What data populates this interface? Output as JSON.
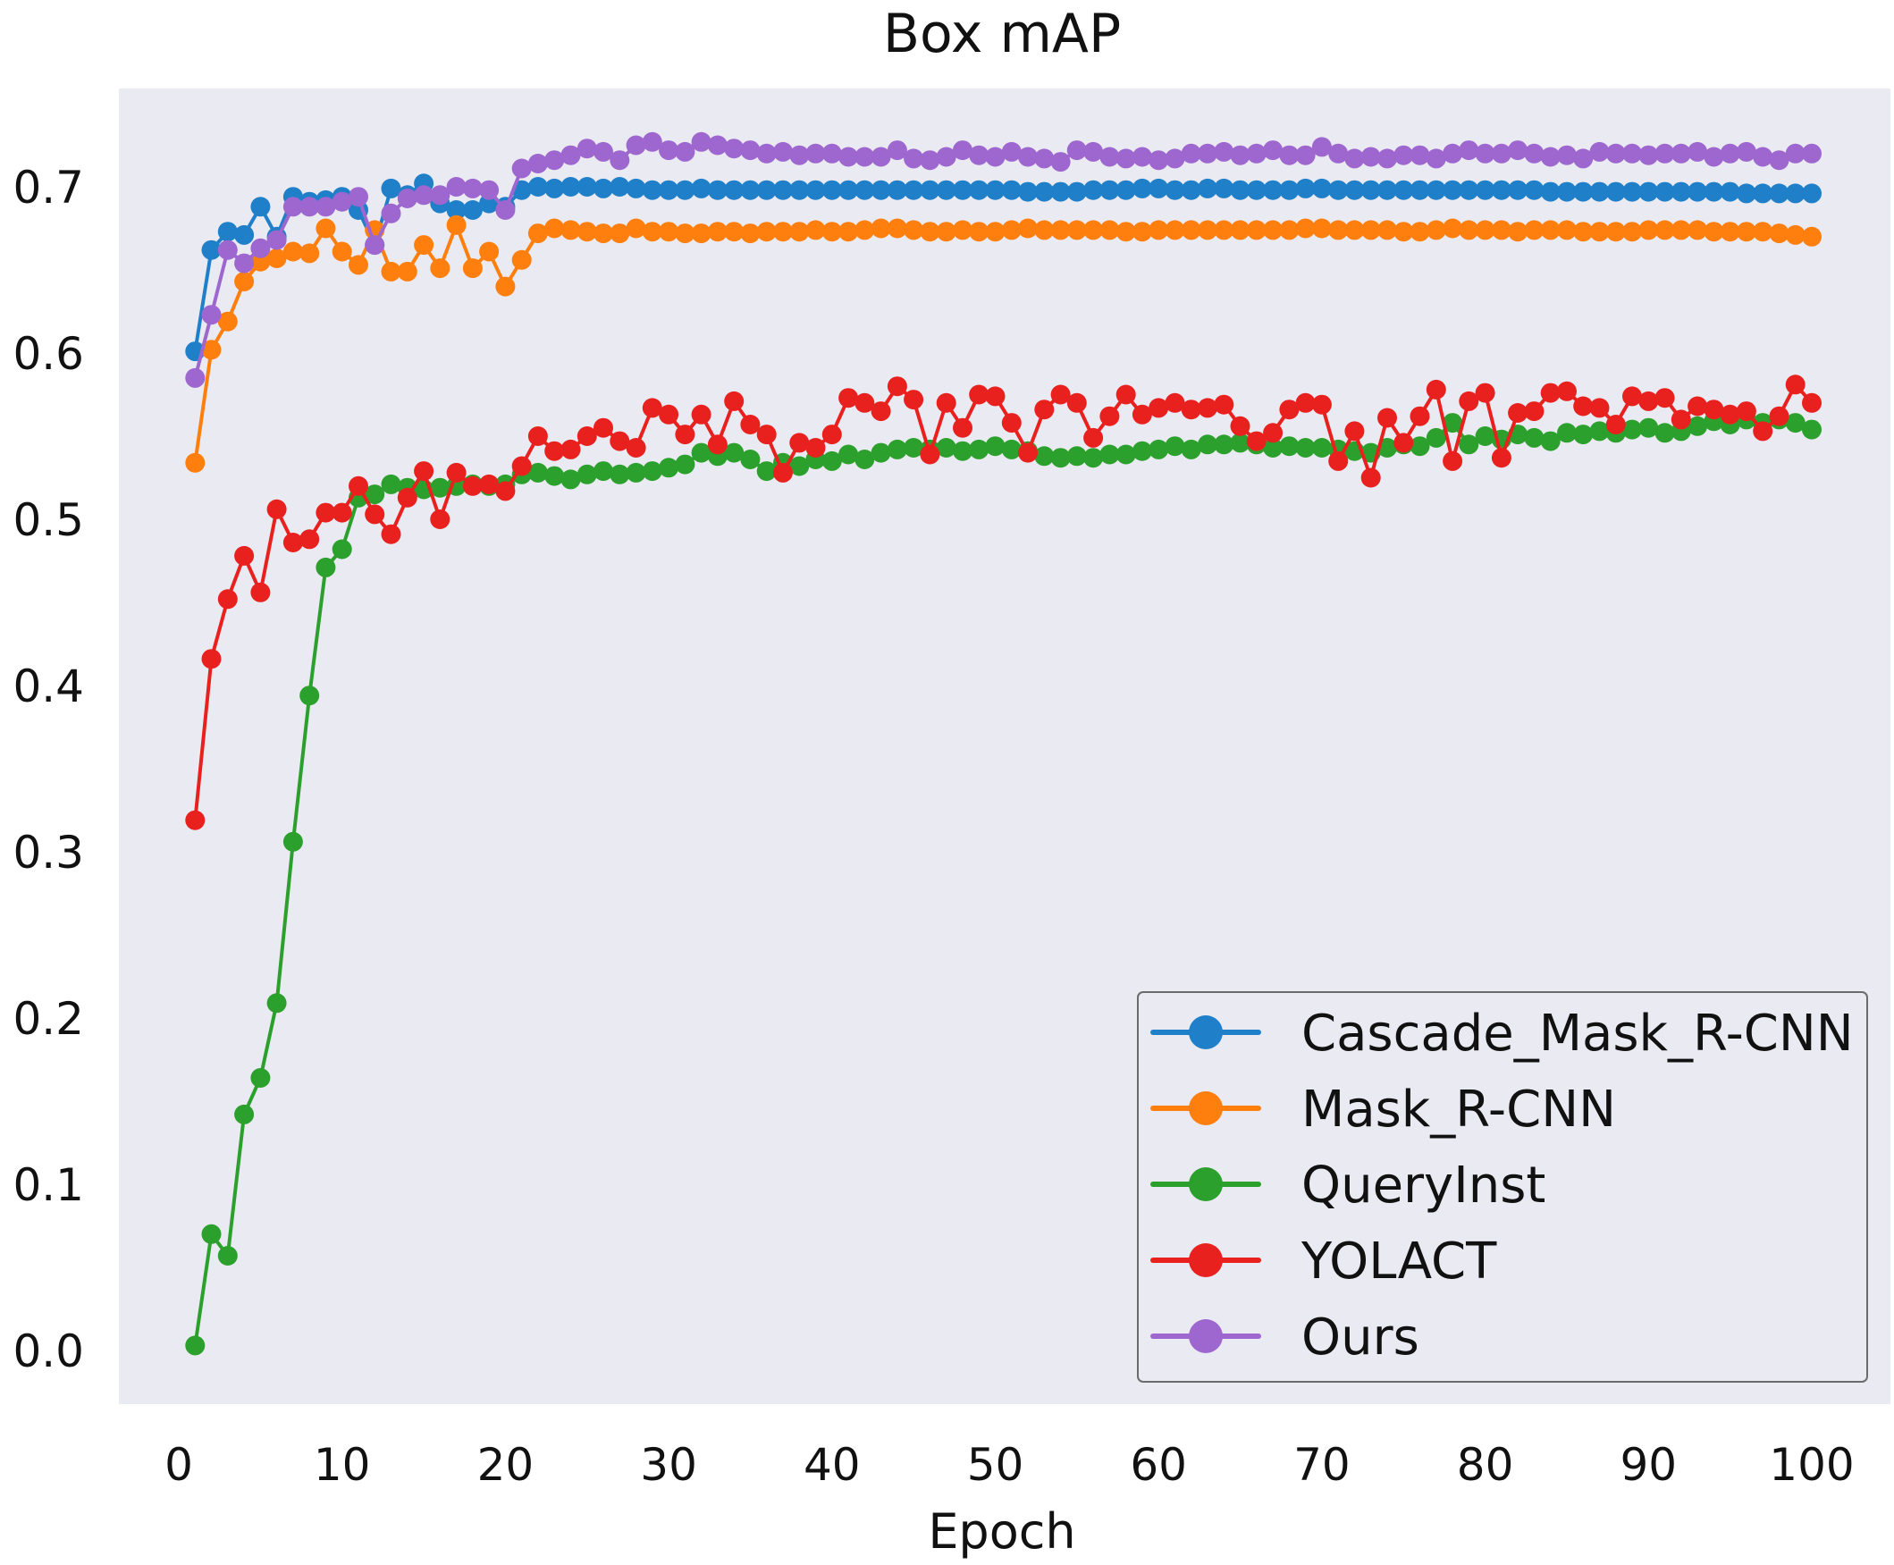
{
  "chart_data": {
    "type": "line",
    "title": "Box mAP",
    "xlabel": "Epoch",
    "ylabel": "",
    "xlim": [
      -1,
      101
    ],
    "ylim": [
      -0.03,
      0.76
    ],
    "xticks": [
      0,
      10,
      20,
      30,
      40,
      50,
      60,
      70,
      80,
      90,
      100
    ],
    "yticks": [
      0.0,
      0.1,
      0.2,
      0.3,
      0.4,
      0.5,
      0.6,
      0.7
    ],
    "ytick_labels": [
      "0.0",
      "0.1",
      "0.2",
      "0.3",
      "0.4",
      "0.5",
      "0.6",
      "0.7"
    ],
    "xtick_labels": [
      "0",
      "10",
      "20",
      "30",
      "40",
      "50",
      "60",
      "70",
      "80",
      "90",
      "100"
    ],
    "grid": false,
    "background": "#eaeaf2",
    "legend_position": "lower right",
    "markers": "circle",
    "x_start": 1,
    "series": [
      {
        "name": "Cascade_Mask_R-CNN",
        "color": "#1f7fc9",
        "values": [
          0.601,
          0.662,
          0.673,
          0.671,
          0.688,
          0.67,
          0.694,
          0.691,
          0.692,
          0.694,
          0.686,
          0.665,
          0.699,
          0.695,
          0.702,
          0.69,
          0.686,
          0.686,
          0.69,
          0.688,
          0.698,
          0.7,
          0.699,
          0.7,
          0.7,
          0.699,
          0.7,
          0.699,
          0.698,
          0.698,
          0.698,
          0.699,
          0.698,
          0.698,
          0.698,
          0.698,
          0.698,
          0.698,
          0.698,
          0.698,
          0.698,
          0.698,
          0.698,
          0.698,
          0.698,
          0.698,
          0.698,
          0.698,
          0.698,
          0.698,
          0.698,
          0.697,
          0.697,
          0.697,
          0.697,
          0.698,
          0.698,
          0.698,
          0.699,
          0.699,
          0.698,
          0.698,
          0.699,
          0.699,
          0.698,
          0.698,
          0.698,
          0.698,
          0.699,
          0.699,
          0.698,
          0.698,
          0.698,
          0.698,
          0.698,
          0.698,
          0.698,
          0.698,
          0.698,
          0.698,
          0.698,
          0.698,
          0.698,
          0.697,
          0.697,
          0.697,
          0.697,
          0.697,
          0.697,
          0.697,
          0.697,
          0.697,
          0.697,
          0.697,
          0.697,
          0.696,
          0.696,
          0.696,
          0.696,
          0.696
        ]
      },
      {
        "name": "Mask_R-CNN",
        "color": "#ff7f0e",
        "values": [
          0.534,
          0.602,
          0.619,
          0.643,
          0.655,
          0.657,
          0.661,
          0.66,
          0.675,
          0.661,
          0.653,
          0.674,
          0.649,
          0.649,
          0.665,
          0.651,
          0.677,
          0.651,
          0.661,
          0.64,
          0.656,
          0.672,
          0.675,
          0.674,
          0.673,
          0.672,
          0.672,
          0.675,
          0.673,
          0.673,
          0.672,
          0.672,
          0.673,
          0.673,
          0.672,
          0.673,
          0.673,
          0.673,
          0.674,
          0.673,
          0.673,
          0.674,
          0.675,
          0.675,
          0.674,
          0.673,
          0.673,
          0.674,
          0.673,
          0.673,
          0.674,
          0.675,
          0.674,
          0.674,
          0.674,
          0.674,
          0.674,
          0.673,
          0.673,
          0.674,
          0.674,
          0.674,
          0.674,
          0.674,
          0.674,
          0.674,
          0.674,
          0.674,
          0.675,
          0.675,
          0.674,
          0.674,
          0.674,
          0.674,
          0.673,
          0.673,
          0.674,
          0.675,
          0.674,
          0.674,
          0.674,
          0.673,
          0.674,
          0.674,
          0.674,
          0.673,
          0.673,
          0.673,
          0.673,
          0.674,
          0.674,
          0.674,
          0.674,
          0.673,
          0.673,
          0.673,
          0.673,
          0.672,
          0.671,
          0.67
        ]
      },
      {
        "name": "QueryInst",
        "color": "#2ca02c",
        "values": [
          0.003,
          0.07,
          0.057,
          0.142,
          0.164,
          0.209,
          0.306,
          0.394,
          0.471,
          0.482,
          0.513,
          0.515,
          0.521,
          0.519,
          0.518,
          0.519,
          0.52,
          0.521,
          0.52,
          0.521,
          0.527,
          0.528,
          0.526,
          0.524,
          0.527,
          0.529,
          0.527,
          0.528,
          0.529,
          0.531,
          0.533,
          0.54,
          0.538,
          0.54,
          0.536,
          0.529,
          0.534,
          0.532,
          0.536,
          0.535,
          0.539,
          0.536,
          0.54,
          0.542,
          0.543,
          0.542,
          0.543,
          0.541,
          0.542,
          0.544,
          0.542,
          0.541,
          0.538,
          0.537,
          0.538,
          0.537,
          0.539,
          0.539,
          0.541,
          0.542,
          0.544,
          0.542,
          0.545,
          0.545,
          0.546,
          0.545,
          0.543,
          0.544,
          0.543,
          0.543,
          0.542,
          0.541,
          0.54,
          0.543,
          0.545,
          0.544,
          0.549,
          0.558,
          0.545,
          0.55,
          0.548,
          0.551,
          0.549,
          0.547,
          0.552,
          0.551,
          0.553,
          0.552,
          0.554,
          0.555,
          0.552,
          0.553,
          0.556,
          0.559,
          0.557,
          0.56,
          0.558,
          0.56,
          0.558,
          0.554
        ]
      },
      {
        "name": "YOLACT",
        "color": "#e8211f",
        "values": [
          0.319,
          0.416,
          0.452,
          0.478,
          0.456,
          0.506,
          0.486,
          0.488,
          0.504,
          0.504,
          0.52,
          0.503,
          0.491,
          0.513,
          0.529,
          0.5,
          0.528,
          0.52,
          0.521,
          0.517,
          0.532,
          0.55,
          0.541,
          0.542,
          0.55,
          0.555,
          0.547,
          0.543,
          0.567,
          0.563,
          0.551,
          0.563,
          0.545,
          0.571,
          0.557,
          0.551,
          0.528,
          0.546,
          0.543,
          0.551,
          0.573,
          0.57,
          0.565,
          0.58,
          0.572,
          0.539,
          0.57,
          0.555,
          0.575,
          0.574,
          0.558,
          0.54,
          0.566,
          0.575,
          0.57,
          0.549,
          0.562,
          0.575,
          0.563,
          0.567,
          0.57,
          0.566,
          0.567,
          0.569,
          0.556,
          0.547,
          0.552,
          0.566,
          0.57,
          0.569,
          0.535,
          0.553,
          0.525,
          0.561,
          0.546,
          0.562,
          0.578,
          0.535,
          0.571,
          0.576,
          0.537,
          0.564,
          0.565,
          0.576,
          0.577,
          0.568,
          0.567,
          0.557,
          0.574,
          0.571,
          0.573,
          0.56,
          0.568,
          0.566,
          0.563,
          0.565,
          0.553,
          0.562,
          0.581,
          0.57
        ]
      },
      {
        "name": "Ours",
        "color": "#9e67cf",
        "values": [
          0.585,
          0.623,
          0.662,
          0.654,
          0.663,
          0.668,
          0.688,
          0.688,
          0.688,
          0.691,
          0.694,
          0.665,
          0.684,
          0.693,
          0.695,
          0.695,
          0.7,
          0.699,
          0.698,
          0.686,
          0.711,
          0.714,
          0.716,
          0.719,
          0.723,
          0.721,
          0.716,
          0.725,
          0.727,
          0.722,
          0.721,
          0.727,
          0.725,
          0.723,
          0.722,
          0.72,
          0.721,
          0.719,
          0.72,
          0.72,
          0.718,
          0.718,
          0.718,
          0.722,
          0.717,
          0.716,
          0.718,
          0.722,
          0.719,
          0.718,
          0.721,
          0.718,
          0.717,
          0.715,
          0.722,
          0.721,
          0.718,
          0.717,
          0.718,
          0.716,
          0.717,
          0.72,
          0.72,
          0.721,
          0.719,
          0.72,
          0.722,
          0.719,
          0.719,
          0.724,
          0.72,
          0.717,
          0.718,
          0.717,
          0.719,
          0.719,
          0.717,
          0.72,
          0.722,
          0.72,
          0.72,
          0.722,
          0.72,
          0.718,
          0.719,
          0.717,
          0.721,
          0.72,
          0.72,
          0.719,
          0.72,
          0.72,
          0.721,
          0.718,
          0.72,
          0.721,
          0.718,
          0.716,
          0.72,
          0.72
        ]
      }
    ]
  },
  "legend": {
    "items": [
      {
        "label": "Cascade_Mask_R-CNN",
        "color": "#1f7fc9"
      },
      {
        "label": "Mask_R-CNN",
        "color": "#ff7f0e"
      },
      {
        "label": "QueryInst",
        "color": "#2ca02c"
      },
      {
        "label": "YOLACT",
        "color": "#e8211f"
      },
      {
        "label": "Ours",
        "color": "#9e67cf"
      }
    ]
  }
}
